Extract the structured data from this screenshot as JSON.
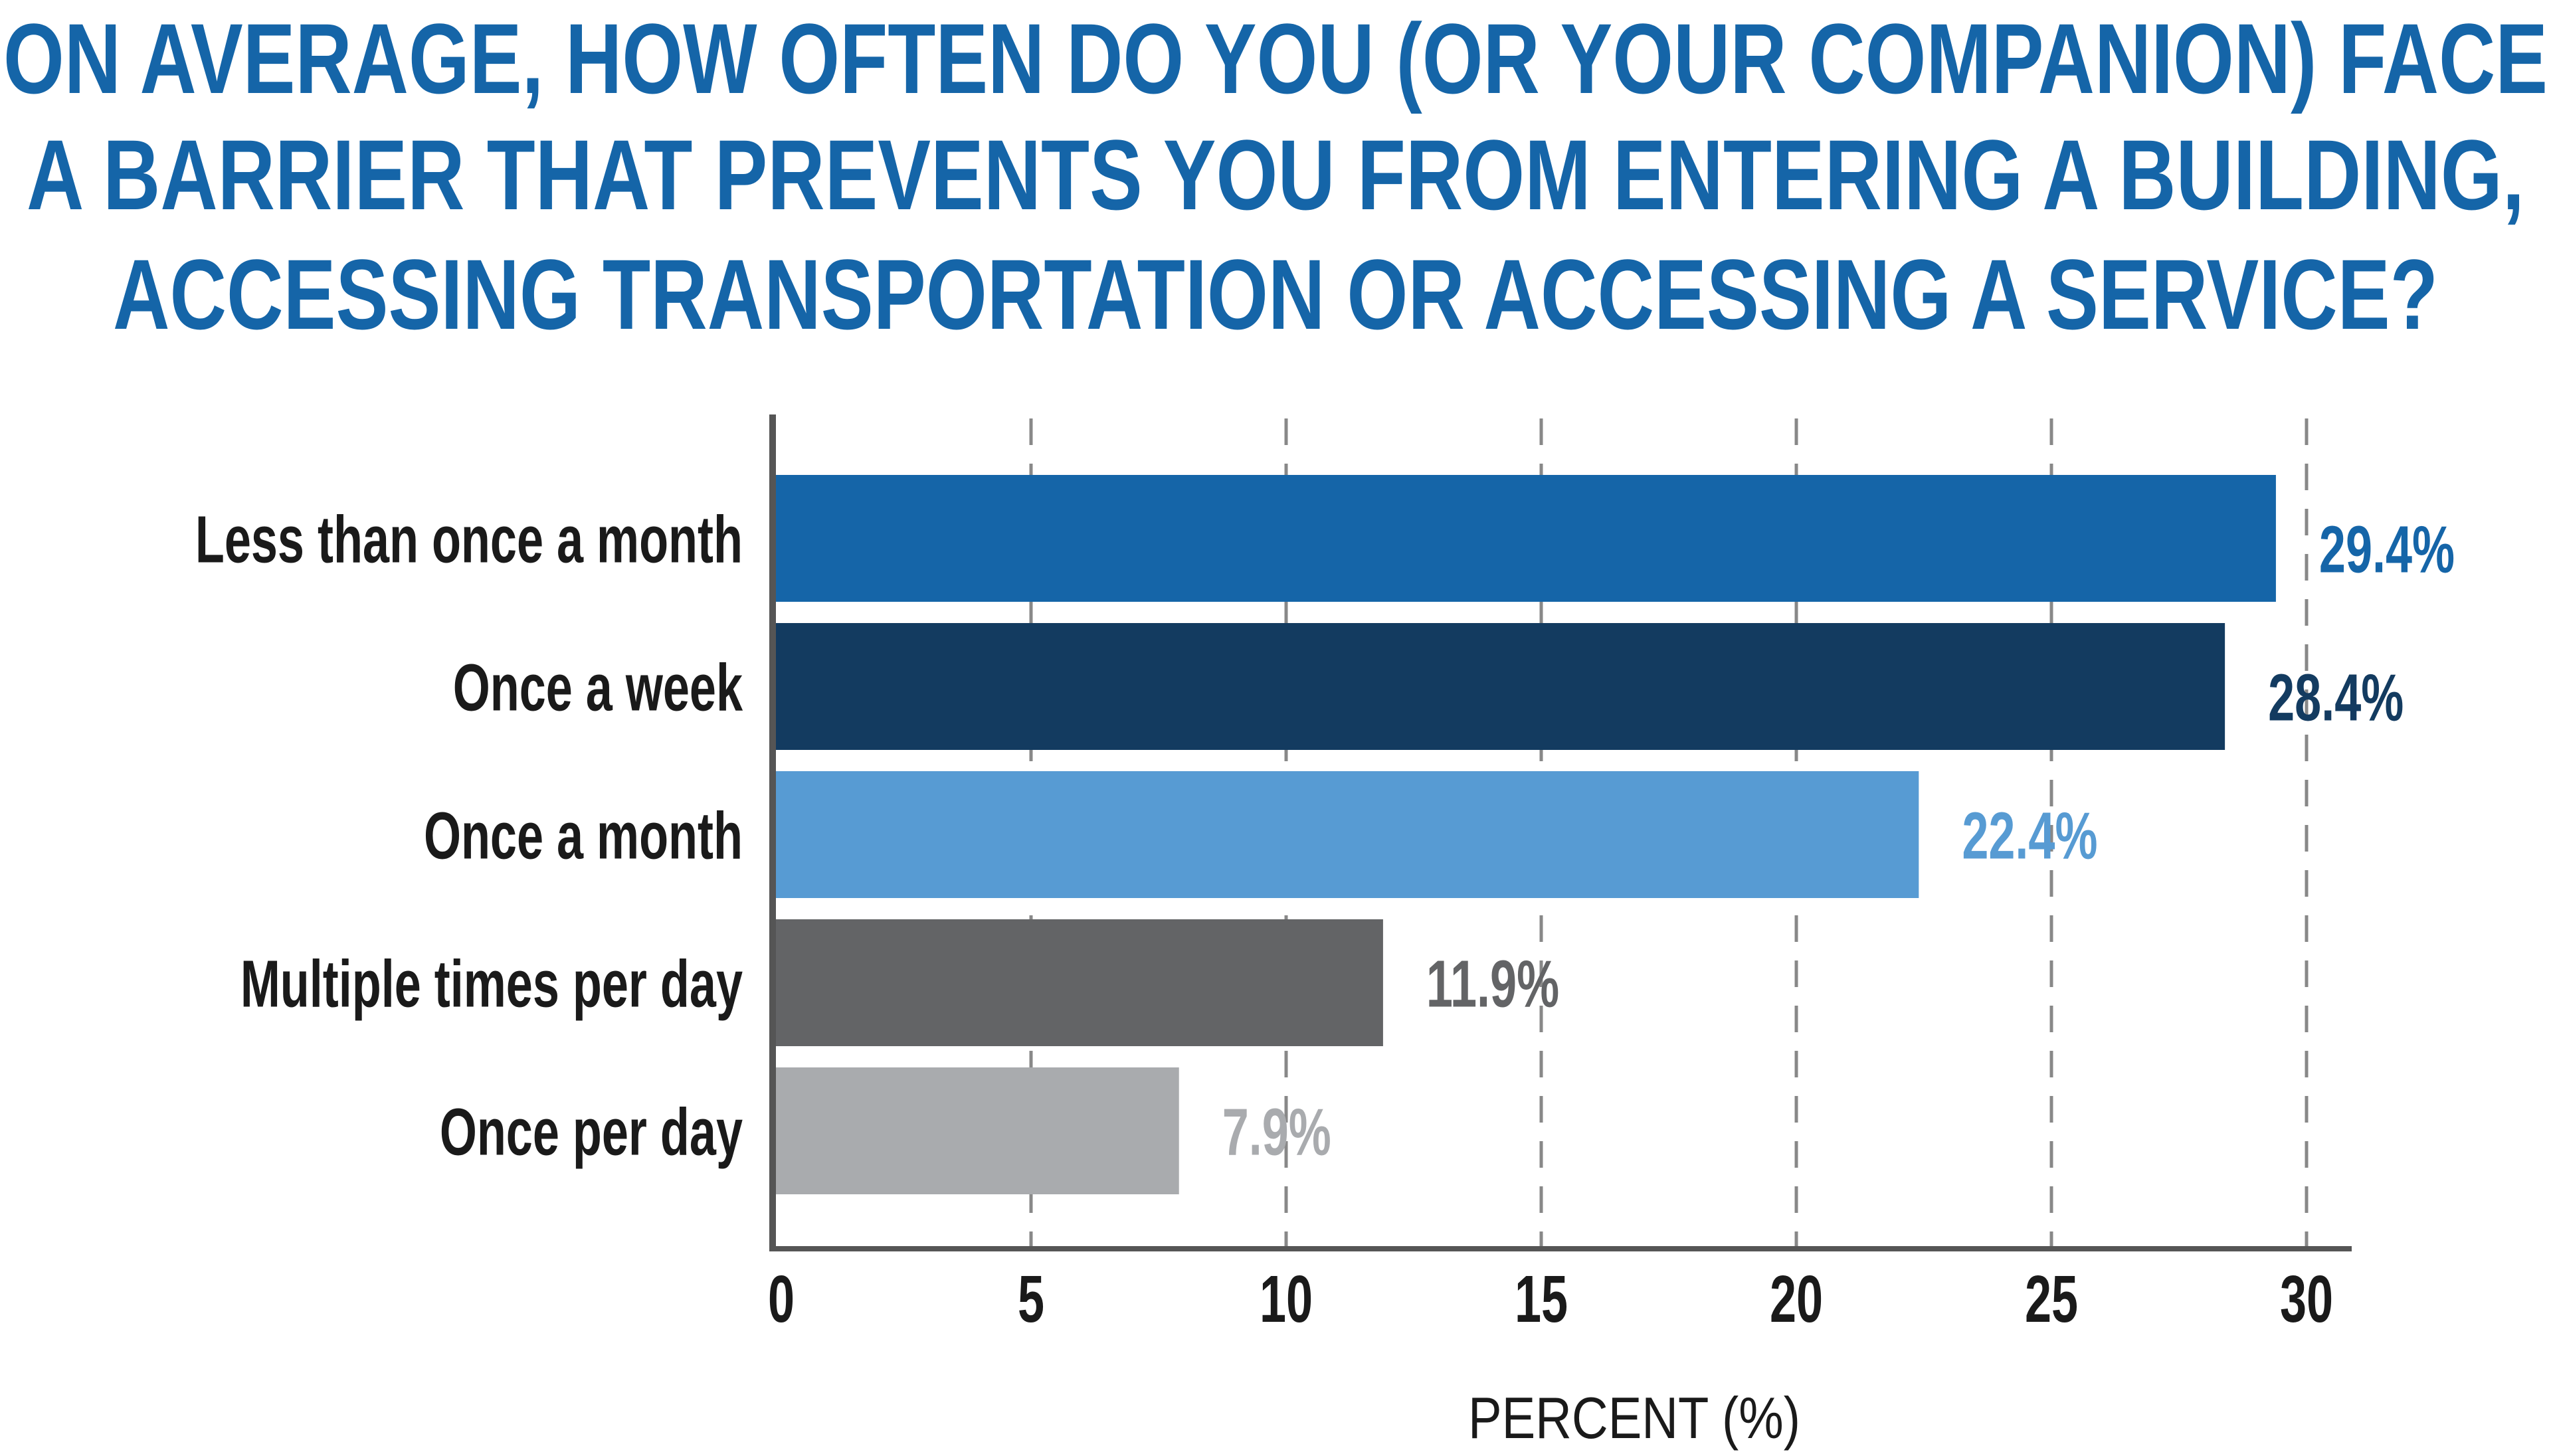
{
  "chart_data": {
    "type": "bar",
    "orientation": "horizontal",
    "title": [
      "ON AVERAGE, HOW OFTEN DO YOU (OR YOUR COMPANION) FACE",
      "A BARRIER THAT PREVENTS YOU FROM ENTERING A BUILDING,",
      "ACCESSING TRANSPORTATION OR ACCESSING A SERVICE?"
    ],
    "categories": [
      "Less than once a month",
      "Once a week",
      "Once a month",
      "Multiple times per day",
      "Once per day"
    ],
    "values": [
      29.4,
      28.4,
      22.4,
      11.9,
      7.9
    ],
    "data_labels": [
      "29.4%",
      "28.4%",
      "22.4%",
      "11.9%",
      "7.9%"
    ],
    "colors": [
      "#1565a8",
      "#133b60",
      "#579bd3",
      "#636466",
      "#a9abae"
    ],
    "xlabel": "PERCENT (%)",
    "ylabel": "",
    "xlim": [
      0,
      30
    ],
    "xticks": [
      "0",
      "5",
      "10",
      "15",
      "20",
      "25",
      "30"
    ],
    "grid": "vertical dashed",
    "title_color": "#1565a8"
  }
}
